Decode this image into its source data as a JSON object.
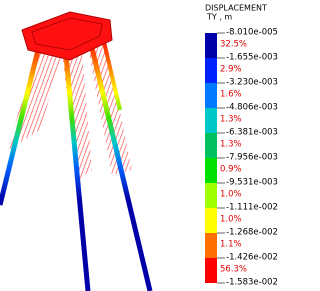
{
  "legend": {
    "title": "DISPLACEMENT",
    "subtitle": "TY , m",
    "levels": [
      "-8.010e-005",
      "-1.655e-003",
      "-3.230e-003",
      "-4.806e-003",
      "-6.381e-003",
      "-7.956e-003",
      "-9.531e-003",
      "-1.111e-002",
      "-1.268e-002",
      "-1.426e-002",
      "-1.583e-002"
    ],
    "bands": [
      {
        "percent": "32.5%",
        "color": "#0000a8"
      },
      {
        "percent": "2.9%",
        "color": "#0020ff"
      },
      {
        "percent": "1.6%",
        "color": "#0078ff"
      },
      {
        "percent": "1.3%",
        "color": "#00c8c8"
      },
      {
        "percent": "1.3%",
        "color": "#00c060"
      },
      {
        "percent": "0.9%",
        "color": "#00e000"
      },
      {
        "percent": "1.0%",
        "color": "#a0ff00"
      },
      {
        "percent": "1.0%",
        "color": "#ffff00"
      },
      {
        "percent": "1.1%",
        "color": "#ff7000"
      },
      {
        "percent": "56.3%",
        "color": "#ff0000"
      }
    ]
  }
}
